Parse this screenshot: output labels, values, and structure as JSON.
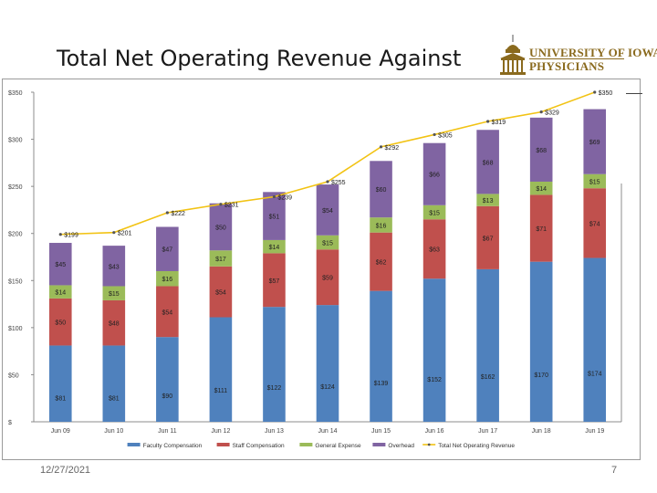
{
  "slide": {
    "title": "Total Net Operating Revenue Against",
    "footer_date": "12/27/2021",
    "page_number": "7"
  },
  "logo": {
    "line1": "UNIVERSITY OF IOWA",
    "line2": "PHYSICIANS",
    "color": "#8a6a1e"
  },
  "chart_data": {
    "type": "bar",
    "stacked": true,
    "categories": [
      "Jun 09",
      "Jun 10",
      "Jun 11",
      "Jun 12",
      "Jun 13",
      "Jun 14",
      "Jun 15",
      "Jun 16",
      "Jun 17",
      "Jun 18",
      "Jun 19"
    ],
    "ylim": [
      0,
      350
    ],
    "yticks": [
      0,
      50,
      100,
      150,
      200,
      250,
      300,
      350
    ],
    "ytick_labels": [
      "$",
      "$50",
      "$100",
      "$150",
      "$200",
      "$250",
      "$300",
      "$350"
    ],
    "grid": false,
    "legend_position": "bottom",
    "series": [
      {
        "name": "Faculty Compensation",
        "color": "#4f81bd",
        "values": [
          81,
          81,
          90,
          111,
          122,
          124,
          139,
          152,
          162,
          170,
          174
        ],
        "labels": [
          "$81",
          "$81",
          "$90",
          "$111",
          "$122",
          "$124",
          "$139",
          "$152",
          "$162",
          "$170",
          "$174"
        ]
      },
      {
        "name": "Staff Compensation",
        "color": "#c0504d",
        "values": [
          50,
          48,
          54,
          54,
          57,
          59,
          62,
          63,
          67,
          71,
          74
        ],
        "labels": [
          "$50",
          "$48",
          "$54",
          "$54",
          "$57",
          "$59",
          "$62",
          "$63",
          "$67",
          "$71",
          "$74"
        ]
      },
      {
        "name": "General Expense",
        "color": "#9bbb59",
        "values": [
          14,
          15,
          16,
          17,
          14,
          15,
          16,
          15,
          13,
          14,
          15
        ],
        "labels": [
          "$14",
          "$15",
          "$16",
          "$17",
          "$14",
          "$15",
          "$16",
          "$15",
          "$13",
          "$14",
          "$15"
        ]
      },
      {
        "name": "Overhead",
        "color": "#8064a2",
        "values": [
          45,
          43,
          47,
          50,
          51,
          54,
          60,
          66,
          68,
          68,
          69
        ],
        "labels": [
          "$45",
          "$43",
          "$47",
          "$50",
          "$51",
          "$54",
          "$60",
          "$66",
          "$68",
          "$68",
          "$69"
        ]
      }
    ],
    "line_series": {
      "name": "Total Net Operating Revenue",
      "color": "#f2c314",
      "values": [
        199,
        201,
        222,
        231,
        239,
        255,
        292,
        305,
        319,
        329,
        350
      ],
      "labels": [
        "$199",
        "$201",
        "$222",
        "$231",
        "$239",
        "$255",
        "$292",
        "$305",
        "$319",
        "$329",
        "$350"
      ]
    }
  }
}
